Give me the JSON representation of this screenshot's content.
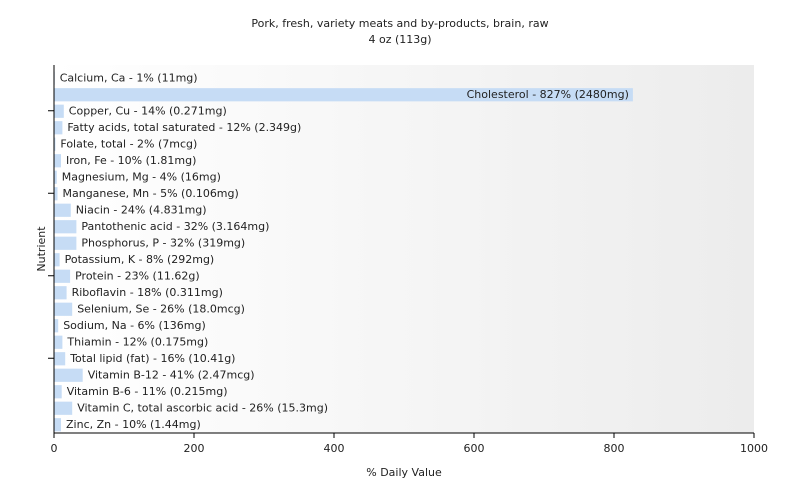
{
  "chart_data": {
    "type": "bar",
    "orientation": "horizontal",
    "title": "Pork, fresh, variety meats and by-products, brain, raw",
    "subtitle": "4 oz (113g)",
    "x_label": "% Daily Value",
    "y_label": "Nutrient",
    "categories": [
      "Calcium, Ca - 1% (11mg)",
      "Cholesterol - 827% (2480mg)",
      "Copper, Cu - 14% (0.271mg)",
      "Fatty acids, total saturated - 12% (2.349g)",
      "Folate, total - 2% (7mcg)",
      "Iron, Fe - 10% (1.81mg)",
      "Magnesium, Mg - 4% (16mg)",
      "Manganese, Mn - 5% (0.106mg)",
      "Niacin - 24% (4.831mg)",
      "Pantothenic acid - 32% (3.164mg)",
      "Phosphorus, P - 32% (319mg)",
      "Potassium, K - 8% (292mg)",
      "Protein - 23% (11.62g)",
      "Riboflavin - 18% (0.311mg)",
      "Selenium, Se - 26% (18.0mcg)",
      "Sodium, Na - 6% (136mg)",
      "Thiamin - 12% (0.175mg)",
      "Total lipid (fat) - 16% (10.41g)",
      "Vitamin B-12 - 41% (2.47mcg)",
      "Vitamin B-6 - 11% (0.215mg)",
      "Vitamin C, total ascorbic acid - 26% (15.3mg)",
      "Zinc, Zn - 10% (1.44mg)"
    ],
    "values": [
      1,
      827,
      14,
      12,
      2,
      10,
      4,
      5,
      24,
      32,
      32,
      8,
      23,
      18,
      26,
      6,
      12,
      16,
      41,
      11,
      26,
      10
    ],
    "color": "#c6dcf5",
    "xlim": [
      0,
      1000
    ],
    "xticks": [
      0,
      200,
      400,
      600,
      800,
      1000
    ]
  }
}
